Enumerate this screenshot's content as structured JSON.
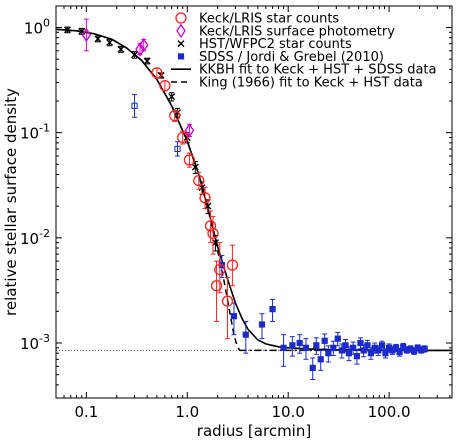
{
  "chart_data": {
    "type": "scatter",
    "xlabel": "radius [arcmin]",
    "ylabel": "relative stellar surface density",
    "xscale": "log",
    "yscale": "log",
    "xlim": [
      0.05,
      420
    ],
    "ylim": [
      0.0003,
      1.6
    ],
    "grid": false,
    "legend_position": "top-right",
    "x_ticks": [
      {
        "value": 0.1,
        "label": "0.1"
      },
      {
        "value": 1,
        "label": "1.0"
      },
      {
        "value": 10,
        "label": "10.0"
      },
      {
        "value": 100,
        "label": "100.0"
      }
    ],
    "y_ticks": [
      {
        "value": 0.001,
        "base": "10",
        "exp": "-3"
      },
      {
        "value": 0.01,
        "base": "10",
        "exp": "-2"
      },
      {
        "value": 0.1,
        "base": "10",
        "exp": "-1"
      },
      {
        "value": 1,
        "base": "10",
        "exp": "0"
      }
    ],
    "background_level": 0.00085,
    "series": [
      {
        "name": "Keck/LRIS star counts",
        "marker": "circle",
        "color": "#ff2020",
        "points": [
          {
            "x": 0.5,
            "y": 0.37,
            "lo": 0.33,
            "hi": 0.41
          },
          {
            "x": 0.6,
            "y": 0.28,
            "lo": 0.25,
            "hi": 0.31
          },
          {
            "x": 0.75,
            "y": 0.145,
            "lo": 0.128,
            "hi": 0.162
          },
          {
            "x": 0.9,
            "y": 0.09,
            "lo": 0.078,
            "hi": 0.103
          },
          {
            "x": 1.05,
            "y": 0.055,
            "lo": 0.047,
            "hi": 0.064
          },
          {
            "x": 1.3,
            "y": 0.035,
            "lo": 0.029,
            "hi": 0.042
          },
          {
            "x": 1.5,
            "y": 0.024,
            "lo": 0.019,
            "hi": 0.03
          },
          {
            "x": 1.7,
            "y": 0.013,
            "lo": 0.009,
            "hi": 0.018
          },
          {
            "x": 1.8,
            "y": 0.011,
            "lo": 0.007,
            "hi": 0.016
          },
          {
            "x": 1.95,
            "y": 0.0035,
            "lo": 0.0016,
            "hi": 0.006
          },
          {
            "x": 2.1,
            "y": 0.005,
            "lo": 0.003,
            "hi": 0.009
          },
          {
            "x": 2.5,
            "y": 0.0025,
            "lo": 0.0011,
            "hi": 0.0042
          },
          {
            "x": 2.8,
            "y": 0.0055,
            "lo": 0.0035,
            "hi": 0.0085
          }
        ]
      },
      {
        "name": "Keck/LRIS surface photometry",
        "marker": "diamond",
        "color": "#cc00cc",
        "points": [
          {
            "x": 0.1,
            "y": 0.85,
            "lo": 0.6,
            "hi": 1.2
          },
          {
            "x": 0.34,
            "y": 0.62,
            "lo": 0.55,
            "hi": 0.7
          },
          {
            "x": 0.37,
            "y": 0.68,
            "lo": 0.6,
            "hi": 0.77
          },
          {
            "x": 1.05,
            "y": 0.105,
            "lo": 0.092,
            "hi": 0.12
          }
        ]
      },
      {
        "name": "HST/WFPC2 star counts",
        "marker": "x",
        "color": "#000000",
        "points": [
          {
            "x": 0.065,
            "y": 0.95,
            "lo": 0.89,
            "hi": 1.01
          },
          {
            "x": 0.09,
            "y": 0.92,
            "lo": 0.86,
            "hi": 0.98
          },
          {
            "x": 0.13,
            "y": 0.78,
            "lo": 0.73,
            "hi": 0.83
          },
          {
            "x": 0.17,
            "y": 0.72,
            "lo": 0.67,
            "hi": 0.77
          },
          {
            "x": 0.22,
            "y": 0.62,
            "lo": 0.58,
            "hi": 0.66
          },
          {
            "x": 0.3,
            "y": 0.55,
            "lo": 0.51,
            "hi": 0.59
          },
          {
            "x": 0.4,
            "y": 0.48,
            "lo": 0.45,
            "hi": 0.51
          },
          {
            "x": 0.55,
            "y": 0.35,
            "lo": 0.33,
            "hi": 0.37
          },
          {
            "x": 0.7,
            "y": 0.22,
            "lo": 0.2,
            "hi": 0.24
          },
          {
            "x": 0.8,
            "y": 0.155,
            "lo": 0.14,
            "hi": 0.17
          },
          {
            "x": 1.0,
            "y": 0.09,
            "lo": 0.08,
            "hi": 0.1
          },
          {
            "x": 1.2,
            "y": 0.047,
            "lo": 0.041,
            "hi": 0.053
          },
          {
            "x": 1.4,
            "y": 0.03,
            "lo": 0.026,
            "hi": 0.034
          },
          {
            "x": 1.6,
            "y": 0.02,
            "lo": 0.017,
            "hi": 0.023
          },
          {
            "x": 1.9,
            "y": 0.009,
            "lo": 0.0075,
            "hi": 0.0105
          }
        ]
      },
      {
        "name": "SDSS / Jordi & Grebel (2010)",
        "marker": "square",
        "color": "#1a2acc",
        "points": [
          {
            "x": 0.3,
            "y": 0.18,
            "lo": 0.14,
            "hi": 0.23,
            "open": true
          },
          {
            "x": 0.8,
            "y": 0.07,
            "lo": 0.06,
            "hi": 0.082,
            "open": true
          },
          {
            "x": 2.2,
            "y": 0.0055,
            "lo": 0.0042,
            "hi": 0.0068
          },
          {
            "x": 2.9,
            "y": 0.0018,
            "lo": 0.0012,
            "hi": 0.0024
          },
          {
            "x": 3.8,
            "y": 0.0012,
            "lo": 0.0008,
            "hi": 0.0016
          },
          {
            "x": 5.5,
            "y": 0.0015,
            "lo": 0.0011,
            "hi": 0.0019
          },
          {
            "x": 7.0,
            "y": 0.0021,
            "lo": 0.0016,
            "hi": 0.0026
          },
          {
            "x": 9.0,
            "y": 0.0009,
            "lo": 0.0006,
            "hi": 0.0012
          },
          {
            "x": 11.0,
            "y": 0.00095,
            "lo": 0.00075,
            "hi": 0.00115
          },
          {
            "x": 13.0,
            "y": 0.001,
            "lo": 0.0008,
            "hi": 0.0012
          },
          {
            "x": 15.0,
            "y": 0.0009,
            "lo": 0.0007,
            "hi": 0.0011
          },
          {
            "x": 17.5,
            "y": 0.00058,
            "lo": 0.00045,
            "hi": 0.00072
          },
          {
            "x": 19.0,
            "y": 0.00095,
            "lo": 0.00078,
            "hi": 0.00112
          },
          {
            "x": 21.0,
            "y": 0.0007,
            "lo": 0.00055,
            "hi": 0.00085
          },
          {
            "x": 23.0,
            "y": 0.00105,
            "lo": 0.00088,
            "hi": 0.00122
          },
          {
            "x": 25.0,
            "y": 0.0008,
            "lo": 0.00066,
            "hi": 0.00094
          },
          {
            "x": 28.0,
            "y": 0.0009,
            "lo": 0.00076,
            "hi": 0.00104
          },
          {
            "x": 31.0,
            "y": 0.0011,
            "lo": 0.00094,
            "hi": 0.00126
          },
          {
            "x": 34.0,
            "y": 0.00085,
            "lo": 0.00072,
            "hi": 0.00098
          },
          {
            "x": 37.0,
            "y": 0.00095,
            "lo": 0.00082,
            "hi": 0.00108
          },
          {
            "x": 40.0,
            "y": 0.0008,
            "lo": 0.00068,
            "hi": 0.00092
          },
          {
            "x": 44.0,
            "y": 0.0009,
            "lo": 0.00078,
            "hi": 0.00102
          },
          {
            "x": 48.0,
            "y": 0.00075,
            "lo": 0.00063,
            "hi": 0.00087
          },
          {
            "x": 52.0,
            "y": 0.001,
            "lo": 0.00088,
            "hi": 0.00112
          },
          {
            "x": 56.0,
            "y": 0.00085,
            "lo": 0.00074,
            "hi": 0.00096
          },
          {
            "x": 61.0,
            "y": 0.00095,
            "lo": 0.00084,
            "hi": 0.00106
          },
          {
            "x": 66.0,
            "y": 0.0008,
            "lo": 0.0007,
            "hi": 0.0009
          },
          {
            "x": 72.0,
            "y": 0.0009,
            "lo": 0.0008,
            "hi": 0.001
          },
          {
            "x": 78.0,
            "y": 0.00085,
            "lo": 0.00076,
            "hi": 0.00094
          },
          {
            "x": 85.0,
            "y": 0.00095,
            "lo": 0.00086,
            "hi": 0.00104
          },
          {
            "x": 92.0,
            "y": 0.0008,
            "lo": 0.00072,
            "hi": 0.00088
          },
          {
            "x": 100.0,
            "y": 0.0009,
            "lo": 0.00082,
            "hi": 0.00098
          },
          {
            "x": 108.0,
            "y": 0.00085,
            "lo": 0.00078,
            "hi": 0.00092
          },
          {
            "x": 117.0,
            "y": 0.0009,
            "lo": 0.00083,
            "hi": 0.00097
          },
          {
            "x": 127.0,
            "y": 0.00082,
            "lo": 0.00075,
            "hi": 0.00089
          },
          {
            "x": 138.0,
            "y": 0.00092,
            "lo": 0.00085,
            "hi": 0.00099
          },
          {
            "x": 150.0,
            "y": 0.00086,
            "lo": 0.0008,
            "hi": 0.00092
          },
          {
            "x": 163.0,
            "y": 0.00088,
            "lo": 0.00082,
            "hi": 0.00094
          },
          {
            "x": 177.0,
            "y": 0.00084,
            "lo": 0.00078,
            "hi": 0.0009
          },
          {
            "x": 192.0,
            "y": 0.0009,
            "lo": 0.00084,
            "hi": 0.00096
          },
          {
            "x": 208.0,
            "y": 0.00086,
            "lo": 0.0008,
            "hi": 0.00092
          },
          {
            "x": 225.0,
            "y": 0.00088,
            "lo": 0.00082,
            "hi": 0.00094
          }
        ]
      }
    ],
    "lines": [
      {
        "name": "KKBH fit to Keck + HST + SDSS data",
        "style": "solid",
        "color": "#000000",
        "x": [
          0.05,
          0.08,
          0.12,
          0.18,
          0.25,
          0.35,
          0.5,
          0.7,
          1.0,
          1.3,
          1.6,
          2.0,
          2.5,
          3.0,
          3.5,
          4.0,
          5.0,
          6.0,
          8.0,
          10.0,
          15.0,
          20.0,
          30.0,
          50.0,
          100.0,
          200.0,
          420.0
        ],
        "y": [
          0.96,
          0.93,
          0.87,
          0.77,
          0.64,
          0.49,
          0.32,
          0.18,
          0.083,
          0.04,
          0.019,
          0.0082,
          0.0041,
          0.0024,
          0.0017,
          0.00135,
          0.00107,
          0.00098,
          0.00092,
          0.0009,
          0.00088,
          0.00087,
          0.00086,
          0.00086,
          0.00085,
          0.00085,
          0.00085
        ]
      },
      {
        "name": "King (1966) fit to Keck + HST data",
        "style": "dashed",
        "color": "#000000",
        "x": [
          0.05,
          0.08,
          0.12,
          0.18,
          0.25,
          0.35,
          0.5,
          0.7,
          1.0,
          1.3,
          1.6,
          2.0,
          2.3,
          2.6,
          2.9,
          3.1,
          3.3
        ],
        "y": [
          0.96,
          0.93,
          0.87,
          0.77,
          0.64,
          0.49,
          0.32,
          0.18,
          0.083,
          0.04,
          0.019,
          0.0075,
          0.004,
          0.0021,
          0.0012,
          0.00095,
          0.00085
        ]
      },
      {
        "name": "",
        "style": "dashdot",
        "color": "#000000",
        "x": [
          3.3,
          420.0
        ],
        "y": [
          0.00085,
          0.00085
        ]
      }
    ],
    "legend": [
      {
        "label": "Keck/LRIS star counts",
        "marker": "circle",
        "color": "#ff2020"
      },
      {
        "label": "Keck/LRIS surface photometry",
        "marker": "diamond",
        "color": "#cc00cc"
      },
      {
        "label": "HST/WFPC2 star counts",
        "marker": "x",
        "color": "#000000"
      },
      {
        "label": "SDSS / Jordi & Grebel (2010)",
        "marker": "square",
        "color": "#1a2acc"
      },
      {
        "label": "KKBH fit to Keck + HST + SDSS data",
        "marker": "line-solid",
        "color": "#000000"
      },
      {
        "label": "King (1966) fit to Keck + HST data",
        "marker": "line-dashed",
        "color": "#000000"
      }
    ]
  }
}
